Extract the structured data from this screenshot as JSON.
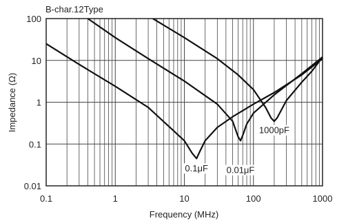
{
  "chart_data": {
    "type": "line",
    "title": "B-char.12Type",
    "xlabel": "Frequency (MHz)",
    "ylabel": "Impedance (Ω)",
    "x_scale": "log",
    "y_scale": "log",
    "xlim": [
      0.1,
      1000
    ],
    "ylim": [
      0.01,
      100
    ],
    "x_ticks": [
      {
        "value": 0.1,
        "label": "0.1"
      },
      {
        "value": 1,
        "label": "1"
      },
      {
        "value": 10,
        "label": "10"
      },
      {
        "value": 100,
        "label": "100"
      },
      {
        "value": 1000,
        "label": "1000"
      }
    ],
    "y_ticks": [
      {
        "value": 0.01,
        "label": "0.01"
      },
      {
        "value": 0.1,
        "label": "0.1"
      },
      {
        "value": 1,
        "label": "1"
      },
      {
        "value": 10,
        "label": "10"
      },
      {
        "value": 100,
        "label": "100"
      }
    ],
    "grid": true,
    "series": [
      {
        "name": "0.1μF",
        "points": [
          [
            0.1,
            25
          ],
          [
            0.3,
            8
          ],
          [
            1,
            2.4
          ],
          [
            3,
            0.75
          ],
          [
            10,
            0.12
          ],
          [
            13,
            0.06
          ],
          [
            15,
            0.045
          ],
          [
            17,
            0.07
          ],
          [
            20,
            0.12
          ],
          [
            30,
            0.25
          ],
          [
            50,
            0.45
          ],
          [
            100,
            0.9
          ],
          [
            200,
            1.7
          ],
          [
            500,
            4.5
          ],
          [
            1000,
            11
          ]
        ]
      },
      {
        "name": "0.01μF",
        "points": [
          [
            0.4,
            100
          ],
          [
            1,
            35
          ],
          [
            3,
            11
          ],
          [
            10,
            3.2
          ],
          [
            30,
            0.9
          ],
          [
            50,
            0.35
          ],
          [
            60,
            0.15
          ],
          [
            65,
            0.12
          ],
          [
            70,
            0.16
          ],
          [
            80,
            0.3
          ],
          [
            100,
            0.55
          ],
          [
            200,
            1.5
          ],
          [
            500,
            4.8
          ],
          [
            1000,
            12
          ]
        ]
      },
      {
        "name": "1000pF",
        "points": [
          [
            3.5,
            100
          ],
          [
            10,
            35
          ],
          [
            30,
            11
          ],
          [
            60,
            4.5
          ],
          [
            100,
            2
          ],
          [
            150,
            0.75
          ],
          [
            180,
            0.42
          ],
          [
            200,
            0.35
          ],
          [
            220,
            0.42
          ],
          [
            300,
            1.1
          ],
          [
            500,
            3
          ],
          [
            700,
            5.5
          ],
          [
            1000,
            12
          ]
        ]
      }
    ],
    "annotations": [
      {
        "text": "0.1μF",
        "x": 15,
        "y": 0.022
      },
      {
        "text": "0.01μF",
        "x": 65,
        "y": 0.02
      },
      {
        "text": "1000pF",
        "x": 200,
        "y": 0.18
      }
    ],
    "colors": {
      "line": "#111111",
      "grid": "#444444",
      "frame": "#222222"
    }
  }
}
